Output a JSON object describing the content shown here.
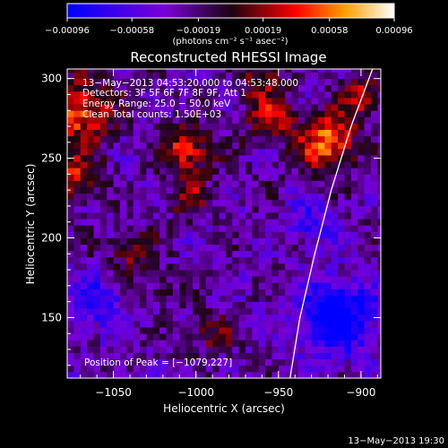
{
  "chart_data": {
    "type": "heatmap",
    "title": "Reconstructed RHESSI Image",
    "xlabel": "Heliocentric X (arcsec)",
    "ylabel": "Heliocentric Y (arcsec)",
    "xlim": [
      -1078,
      -888
    ],
    "ylim": [
      112,
      306
    ],
    "x_ticks": [
      -1050,
      -1000,
      -950,
      -900
    ],
    "y_ticks": [
      150,
      200,
      250,
      300
    ],
    "x_tick_labels": [
      "−1050",
      "−1000",
      "−950",
      "−900"
    ],
    "y_tick_labels": [
      "150",
      "200",
      "250",
      "300"
    ],
    "colorbar": {
      "min": -0.00096,
      "max": 0.00096,
      "ticks": [
        -0.00096,
        -0.00058,
        -0.00019,
        0.00019,
        0.00058,
        0.00096
      ],
      "tick_labels": [
        "−0.00096",
        "−0.00058",
        "−0.00019",
        "0.00019",
        "0.00058",
        "0.00096"
      ],
      "unit_label": "(photons cm⁻² s⁻¹ asec⁻²)",
      "colors": [
        "#0000ff",
        "#7a00d8",
        "#1a0510",
        "#ff0000",
        "#ffa000",
        "#ffffff"
      ]
    },
    "annotations": [
      "13−May−2013 04:53:20.000 to 04:53:48.000",
      "Detectors: 3F 5F 6F 7F 8F 9F, Att 1",
      "Energy Range: 25.0 − 50.0 keV",
      "Clean     Total counts: 1.50E+03"
    ],
    "peak_label": "Position of Peak = [−1079,227]",
    "hot_regions": [
      {
        "x": -1070,
        "y": 280,
        "sigma": 14,
        "value": 0.0008
      },
      {
        "x": -1074,
        "y": 240,
        "sigma": 10,
        "value": 0.0006
      },
      {
        "x": -1005,
        "y": 255,
        "sigma": 11,
        "value": 0.0007
      },
      {
        "x": -1005,
        "y": 225,
        "sigma": 8,
        "value": 0.0005
      },
      {
        "x": -920,
        "y": 260,
        "sigma": 12,
        "value": 0.0009
      },
      {
        "x": -955,
        "y": 275,
        "sigma": 10,
        "value": 0.0006
      },
      {
        "x": -900,
        "y": 290,
        "sigma": 9,
        "value": 0.0006
      },
      {
        "x": -960,
        "y": 300,
        "sigma": 9,
        "value": 0.0005
      },
      {
        "x": -1040,
        "y": 190,
        "sigma": 10,
        "value": 0.0004
      },
      {
        "x": -990,
        "y": 140,
        "sigma": 9,
        "value": 0.0004
      },
      {
        "x": -1020,
        "y": 170,
        "sigma": 8,
        "value": 0.0003
      }
    ],
    "cold_regions": [
      {
        "x": -915,
        "y": 150,
        "sigma": 16,
        "value": -0.0009
      },
      {
        "x": -1060,
        "y": 160,
        "sigma": 12,
        "value": -0.0005
      },
      {
        "x": -930,
        "y": 210,
        "sigma": 10,
        "value": -0.0004
      }
    ],
    "limb_curve": [
      [
        -943,
        112
      ],
      [
        -937,
        150
      ],
      [
        -928,
        190
      ],
      [
        -918,
        230
      ],
      [
        -906,
        270
      ],
      [
        -893,
        306
      ]
    ]
  },
  "footer": {
    "timestamp": "13−May−2013 19:30"
  }
}
